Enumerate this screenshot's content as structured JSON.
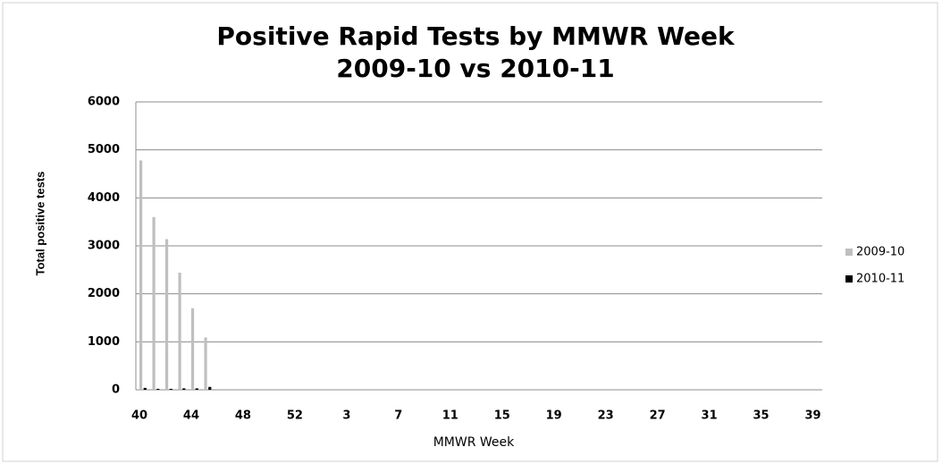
{
  "chart_data": {
    "type": "bar",
    "title": "Positive Rapid Tests by MMWR Week",
    "subtitle": "2009-10 vs 2010-11",
    "x_label": "MMWR Week",
    "y_label": "Total positive tests",
    "categories": [
      "40",
      null,
      null,
      null,
      "44",
      null,
      null,
      null,
      "48",
      null,
      null,
      null,
      "52",
      null,
      null,
      null,
      "3",
      null,
      null,
      null,
      "7",
      null,
      null,
      null,
      "11",
      null,
      null,
      null,
      "15",
      null,
      null,
      null,
      "19",
      null,
      null,
      null,
      "23",
      null,
      null,
      null,
      "27",
      null,
      null,
      null,
      "31",
      null,
      null,
      null,
      "35",
      null,
      null,
      null,
      "39"
    ],
    "series": [
      {
        "name": "2009-10",
        "color": "#bfbfbf",
        "values": [
          4780,
          3600,
          3140,
          2440,
          1700,
          1090,
          null,
          null,
          null,
          null,
          null,
          null,
          null,
          null,
          null,
          null,
          null,
          null,
          null,
          null,
          null,
          null,
          null,
          null,
          null,
          null,
          null,
          null,
          null,
          null,
          null,
          null,
          null,
          null,
          null,
          null,
          null,
          null,
          null,
          null,
          null,
          null,
          null,
          null,
          null,
          null,
          null,
          null,
          null,
          null,
          null,
          null,
          null
        ]
      },
      {
        "name": "2010-11",
        "color": "#000000",
        "values": [
          40,
          20,
          20,
          30,
          30,
          60,
          null,
          null,
          null,
          null,
          null,
          null,
          null,
          null,
          null,
          null,
          null,
          null,
          null,
          null,
          null,
          null,
          null,
          null,
          null,
          null,
          null,
          null,
          null,
          null,
          null,
          null,
          null,
          null,
          null,
          null,
          null,
          null,
          null,
          null,
          null,
          null,
          null,
          null,
          null,
          null,
          null,
          null,
          null,
          null,
          null,
          null,
          null
        ]
      }
    ],
    "ylim": [
      0,
      6000
    ],
    "yticks": [
      0,
      1000,
      2000,
      3000,
      4000,
      5000,
      6000
    ],
    "grid": true,
    "legend": "right"
  }
}
